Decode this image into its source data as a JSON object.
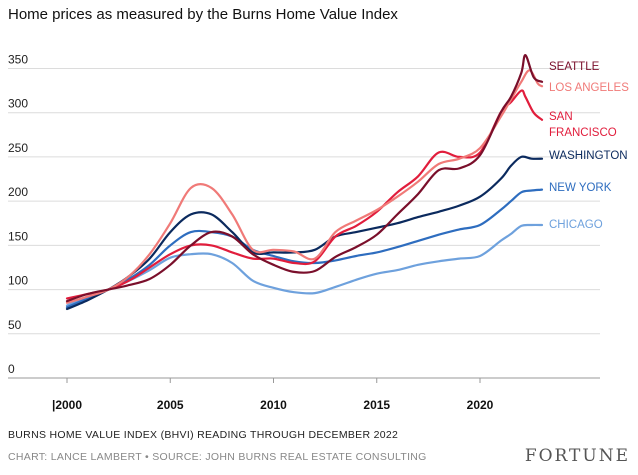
{
  "title": "Home prices as measured by the Burns Home Value Index",
  "footnote": "BURNS HOME VALUE INDEX (BHVI) READING THROUGH DECEMBER 2022",
  "credit": "CHART: LANCE LAMBERT • SOURCE: JOHN BURNS REAL ESTATE CONSULTING",
  "brand": "FORTUNE",
  "chart_data": {
    "type": "line",
    "title": "Home prices as measured by the Burns Home Value Index",
    "xlim": [
      2000,
      2023
    ],
    "ylim": [
      0,
      370
    ],
    "yticks": [
      0,
      50,
      100,
      150,
      200,
      250,
      300,
      350
    ],
    "xticks": [
      "|2000",
      "2005",
      "2010",
      "2015",
      "2020"
    ],
    "xtick_values": [
      2000,
      2005,
      2010,
      2015,
      2020
    ],
    "grid": true,
    "legend": "labels at right end of each line",
    "series": [
      {
        "name": "SEATTLE",
        "color": "#7a0f2b",
        "x": [
          2000,
          2001,
          2002,
          2003,
          2004,
          2005,
          2006,
          2007,
          2008,
          2009,
          2010,
          2011,
          2012,
          2013,
          2014,
          2015,
          2016,
          2017,
          2018,
          2019,
          2020,
          2021,
          2021.5,
          2022,
          2022.2,
          2022.6,
          2023
        ],
        "y": [
          87,
          95,
          100,
          105,
          112,
          128,
          150,
          165,
          160,
          140,
          128,
          120,
          121,
          137,
          148,
          162,
          185,
          208,
          235,
          237,
          252,
          300,
          318,
          345,
          365,
          340,
          335
        ]
      },
      {
        "name": "LOS ANGELES",
        "color": "#f07a78",
        "x": [
          2000,
          2001,
          2002,
          2003,
          2004,
          2005,
          2006,
          2007,
          2008,
          2009,
          2010,
          2011,
          2012,
          2013,
          2014,
          2015,
          2016,
          2017,
          2018,
          2019,
          2020,
          2021,
          2021.5,
          2022,
          2022.4,
          2022.8,
          2023
        ],
        "y": [
          85,
          92,
          100,
          115,
          140,
          175,
          215,
          215,
          185,
          145,
          145,
          143,
          135,
          165,
          178,
          190,
          205,
          222,
          242,
          248,
          260,
          295,
          315,
          335,
          348,
          333,
          330
        ]
      },
      {
        "name": "SAN FRANCISCO",
        "color": "#e11d3c",
        "x": [
          2000,
          2001,
          2002,
          2003,
          2004,
          2005,
          2006,
          2007,
          2008,
          2009,
          2010,
          2011,
          2012,
          2013,
          2014,
          2015,
          2016,
          2017,
          2018,
          2019,
          2020,
          2021,
          2021.5,
          2022,
          2022.2,
          2022.6,
          2023
        ],
        "y": [
          90,
          95,
          100,
          110,
          125,
          140,
          150,
          150,
          142,
          135,
          135,
          130,
          132,
          160,
          172,
          188,
          210,
          228,
          255,
          250,
          255,
          300,
          312,
          325,
          318,
          300,
          292
        ]
      },
      {
        "name": "WASHINGTON",
        "color": "#0b2a5e",
        "x": [
          2000,
          2001,
          2002,
          2003,
          2004,
          2005,
          2006,
          2007,
          2008,
          2009,
          2010,
          2011,
          2012,
          2013,
          2014,
          2015,
          2016,
          2017,
          2018,
          2019,
          2020,
          2021,
          2021.5,
          2022,
          2022.5,
          2023
        ],
        "y": [
          78,
          88,
          100,
          115,
          135,
          165,
          185,
          185,
          165,
          142,
          142,
          142,
          145,
          160,
          165,
          170,
          175,
          182,
          188,
          195,
          205,
          225,
          240,
          250,
          248,
          248
        ]
      },
      {
        "name": "NEW YORK",
        "color": "#2e6dbf",
        "x": [
          2000,
          2001,
          2002,
          2003,
          2004,
          2005,
          2006,
          2007,
          2008,
          2009,
          2010,
          2011,
          2012,
          2013,
          2014,
          2015,
          2016,
          2017,
          2018,
          2019,
          2020,
          2021,
          2021.5,
          2022,
          2022.5,
          2023
        ],
        "y": [
          80,
          90,
          100,
          112,
          128,
          150,
          165,
          165,
          160,
          145,
          138,
          132,
          130,
          133,
          138,
          142,
          148,
          155,
          162,
          168,
          173,
          190,
          200,
          210,
          212,
          213
        ]
      },
      {
        "name": "CHICAGO",
        "color": "#6ea1dd",
        "x": [
          2000,
          2001,
          2002,
          2003,
          2004,
          2005,
          2006,
          2007,
          2008,
          2009,
          2010,
          2011,
          2012,
          2013,
          2014,
          2015,
          2016,
          2017,
          2018,
          2019,
          2020,
          2021,
          2021.5,
          2022,
          2022.5,
          2023
        ],
        "y": [
          82,
          92,
          100,
          110,
          122,
          136,
          140,
          140,
          130,
          110,
          102,
          97,
          96,
          103,
          111,
          118,
          122,
          128,
          132,
          135,
          138,
          155,
          163,
          172,
          173,
          173
        ]
      }
    ]
  }
}
